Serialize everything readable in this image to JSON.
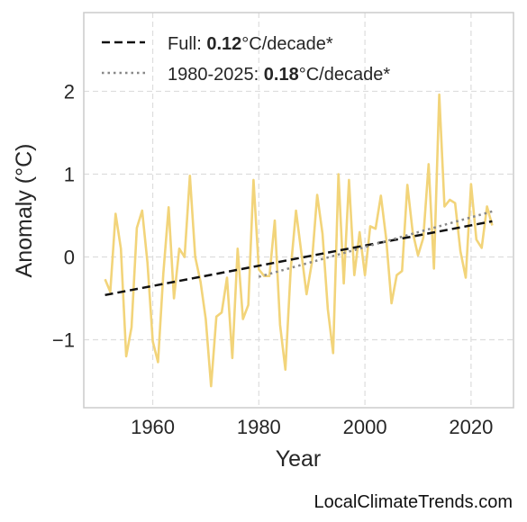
{
  "chart_data": {
    "type": "line",
    "title": "",
    "xlabel": "Year",
    "ylabel": "Anomaly (°C)",
    "xlim": [
      1947,
      2028
    ],
    "ylim": [
      -1.82,
      2.95
    ],
    "x_ticks": [
      1960,
      1980,
      2000,
      2020
    ],
    "y_ticks": [
      -1,
      0,
      1,
      2
    ],
    "y_tick_labels": [
      "−1",
      "0",
      "1",
      "2"
    ],
    "grid": true,
    "legend_placement": "top-left",
    "series": [
      {
        "style": "solid",
        "color": "#f2d47a",
        "x": [
          1951,
          1952,
          1953,
          1954,
          1955,
          1956,
          1957,
          1958,
          1959,
          1960,
          1961,
          1962,
          1963,
          1964,
          1965,
          1966,
          1967,
          1968,
          1969,
          1970,
          1971,
          1972,
          1973,
          1974,
          1975,
          1976,
          1977,
          1978,
          1979,
          1980,
          1981,
          1982,
          1983,
          1984,
          1985,
          1986,
          1987,
          1988,
          1989,
          1990,
          1991,
          1992,
          1993,
          1994,
          1995,
          1996,
          1997,
          1998,
          1999,
          2000,
          2001,
          2002,
          2003,
          2004,
          2005,
          2006,
          2007,
          2008,
          2009,
          2010,
          2011,
          2012,
          2013,
          2014,
          2015,
          2016,
          2017,
          2018,
          2019,
          2020,
          2021,
          2022,
          2023,
          2024
        ],
        "y": [
          -0.27,
          -0.42,
          0.52,
          0.1,
          -1.2,
          -0.85,
          0.35,
          0.56,
          -0.07,
          -1.02,
          -1.27,
          -0.2,
          0.6,
          -0.5,
          0.1,
          0.0,
          0.98,
          0.0,
          -0.3,
          -0.75,
          -1.56,
          -0.72,
          -0.67,
          -0.25,
          -1.22,
          0.1,
          -0.75,
          -0.58,
          0.93,
          -0.15,
          -0.23,
          -0.23,
          0.44,
          -0.82,
          -1.36,
          -0.15,
          0.56,
          0.06,
          -0.45,
          -0.07,
          0.75,
          0.28,
          -0.63,
          -1.16,
          1.0,
          -0.32,
          0.93,
          -0.22,
          0.3,
          -0.22,
          0.37,
          0.34,
          0.74,
          0.22,
          -0.56,
          -0.22,
          -0.17,
          0.87,
          0.3,
          0.02,
          0.23,
          1.12,
          -0.14,
          1.96,
          0.61,
          0.69,
          0.65,
          0.07,
          -0.25,
          0.88,
          0.21,
          0.11,
          0.61,
          0.38
        ]
      },
      {
        "style": "dashed",
        "color": "#111111",
        "label_prefix": "Full: ",
        "label_value": "0.12",
        "label_suffix": "°C/decade*",
        "x": [
          1951,
          2024
        ],
        "y": [
          -0.46,
          0.43
        ]
      },
      {
        "style": "dotted",
        "color": "#888888",
        "label_prefix": "1980-2025: ",
        "label_value": "0.18",
        "label_suffix": "°C/decade*",
        "x": [
          1980,
          2024
        ],
        "y": [
          -0.24,
          0.55
        ]
      }
    ]
  },
  "watermark": "LocalClimateTrends.com"
}
